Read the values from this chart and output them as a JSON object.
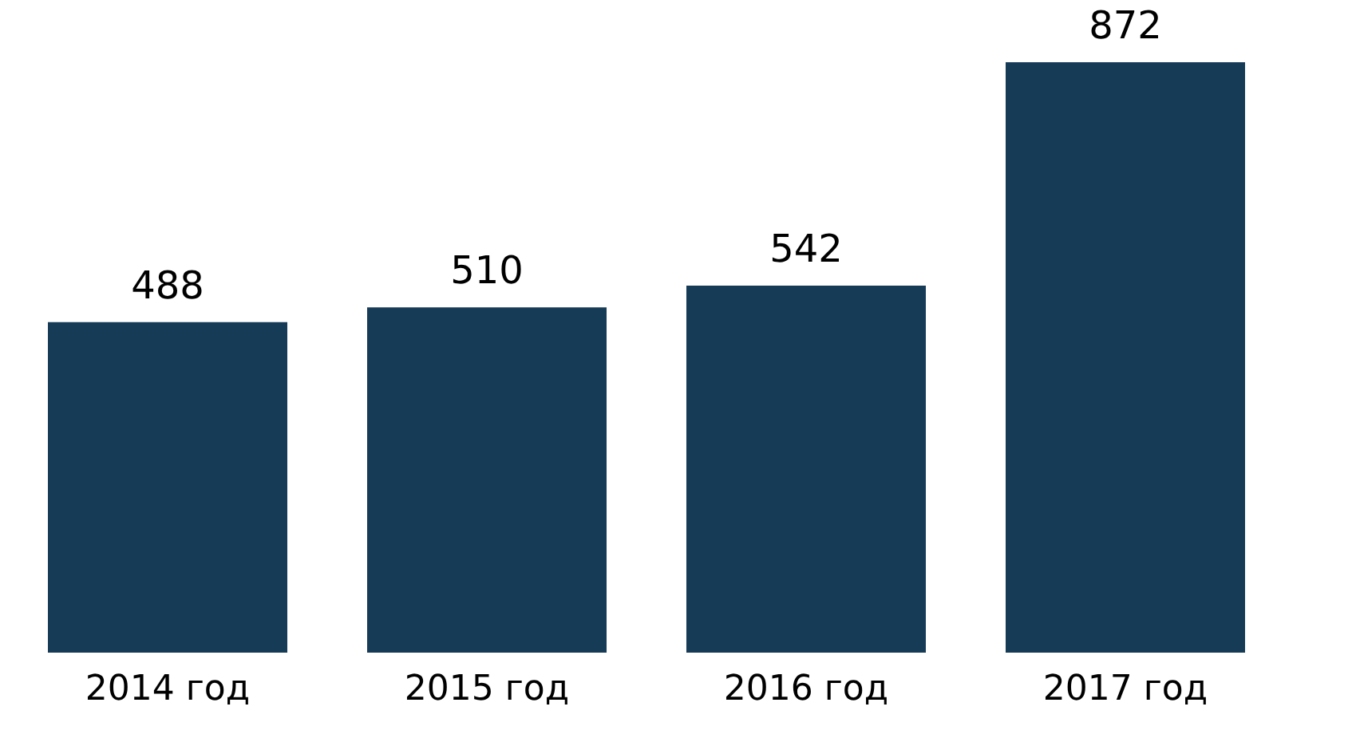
{
  "chart_data": {
    "type": "bar",
    "categories": [
      "2014 год",
      "2015 год",
      "2016 год",
      "2017 год"
    ],
    "values": [
      488,
      510,
      542,
      872
    ],
    "color": "#163b57",
    "data_labels": true
  }
}
